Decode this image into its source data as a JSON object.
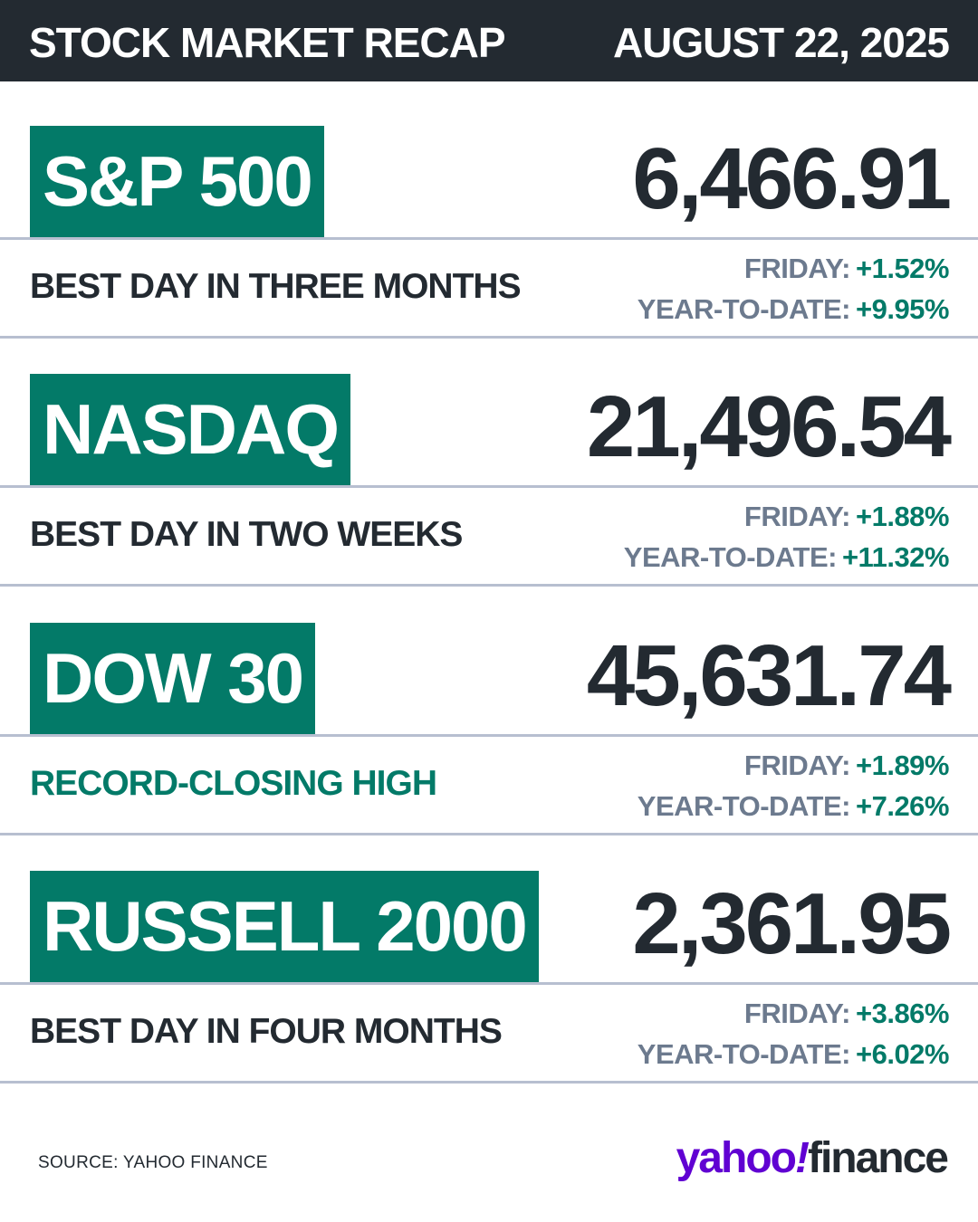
{
  "header": {
    "title": "STOCK MARKET RECAP",
    "date": "AUGUST 22, 2025"
  },
  "indices": [
    {
      "name": "S&P 500",
      "value": "6,466.91",
      "tagline": "BEST DAY IN THREE MONTHS",
      "friday_label": "FRIDAY:",
      "friday_change": "+1.52%",
      "ytd_label": "YEAR-TO-DATE:",
      "ytd_change": "+9.95%"
    },
    {
      "name": "NASDAQ",
      "value": "21,496.54",
      "tagline": "BEST DAY IN TWO WEEKS",
      "friday_label": "FRIDAY:",
      "friday_change": "+1.88%",
      "ytd_label": "YEAR-TO-DATE:",
      "ytd_change": "+11.32%"
    },
    {
      "name": "DOW 30",
      "value": "45,631.74",
      "tagline": "RECORD-CLOSING HIGH",
      "friday_label": "FRIDAY:",
      "friday_change": "+1.89%",
      "ytd_label": "YEAR-TO-DATE:",
      "ytd_change": "+7.26%"
    },
    {
      "name": "RUSSELL 2000",
      "value": "2,361.95",
      "tagline": "BEST DAY IN FOUR MONTHS",
      "friday_label": "FRIDAY:",
      "friday_change": "+3.86%",
      "ytd_label": "YEAR-TO-DATE:",
      "ytd_change": "+6.02%"
    }
  ],
  "footer": {
    "source": "SOURCE: YAHOO FINANCE",
    "logo_yahoo": "yahoo",
    "logo_bang": "!",
    "logo_finance": "finance"
  },
  "colors": {
    "header_bg": "#232a31",
    "badge_green": "#037a68",
    "label_gray": "#6c7a8e",
    "divider": "#b7bfd0",
    "yahoo_purple": "#6001d2"
  }
}
